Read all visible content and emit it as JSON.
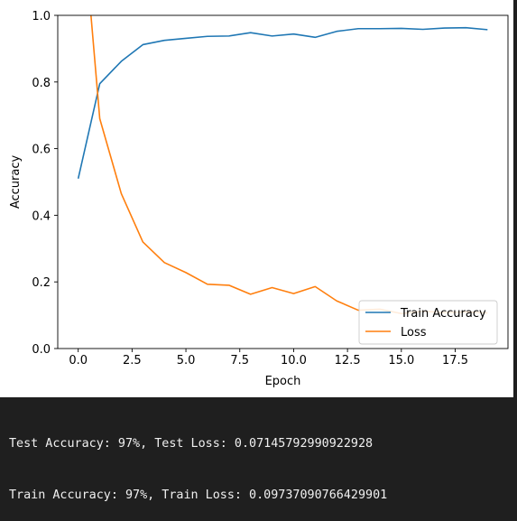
{
  "chart_data": {
    "type": "line",
    "title": "",
    "xlabel": "Epoch",
    "ylabel": "Accuracy",
    "xlim": [
      -0.95,
      19.95
    ],
    "ylim": [
      0.0,
      1.0
    ],
    "xticks": [
      0.0,
      2.5,
      5.0,
      7.5,
      10.0,
      12.5,
      15.0,
      17.5
    ],
    "xtick_labels": [
      "0.0",
      "2.5",
      "5.0",
      "7.5",
      "10.0",
      "12.5",
      "15.0",
      "17.5"
    ],
    "yticks": [
      0.0,
      0.2,
      0.4,
      0.6,
      0.8,
      1.0
    ],
    "ytick_labels": [
      "0.0",
      "0.2",
      "0.4",
      "0.6",
      "0.8",
      "1.0"
    ],
    "grid": false,
    "legend_position": "lower-right",
    "x": [
      0,
      1,
      2,
      3,
      4,
      5,
      6,
      7,
      8,
      9,
      10,
      11,
      12,
      13,
      14,
      15,
      16,
      17,
      18,
      19
    ],
    "series": [
      {
        "name": "Train Accuracy",
        "color": "#1f77b4",
        "values": [
          0.51,
          0.795,
          0.862,
          0.912,
          0.925,
          0.931,
          0.937,
          0.938,
          0.948,
          0.938,
          0.944,
          0.934,
          0.952,
          0.96,
          0.96,
          0.961,
          0.958,
          0.962,
          0.963,
          0.957
        ]
      },
      {
        "name": "Loss",
        "color": "#ff7f0e",
        "values": [
          1.45,
          0.69,
          0.465,
          0.32,
          0.258,
          0.228,
          0.193,
          0.19,
          0.163,
          0.183,
          0.165,
          0.186,
          0.143,
          0.115,
          0.118,
          0.105,
          0.112,
          0.108,
          0.11,
          0.107
        ]
      }
    ]
  },
  "output": {
    "line1": "Test Accuracy: 97%, Test Loss: 0.07145792990922928",
    "line2": "Train Accuracy: 97%, Train Loss: 0.09737090766429901"
  }
}
